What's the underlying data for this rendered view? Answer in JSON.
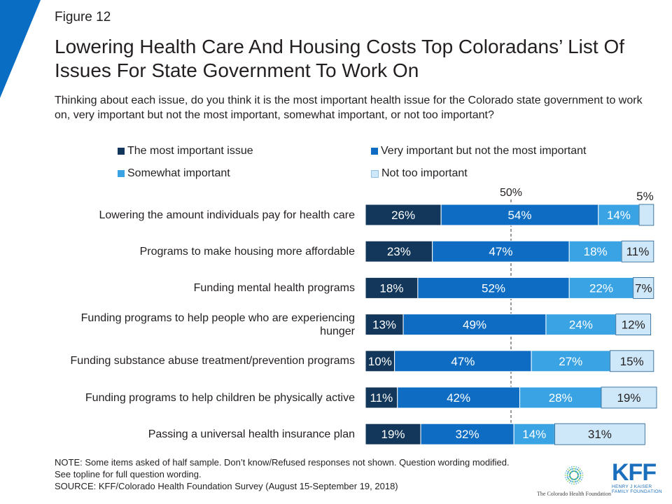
{
  "figure_label": "Figure 12",
  "title": "Lowering Health Care And Housing Costs Top Coloradans’ List Of Issues For State Government To Work On",
  "subtitle": "Thinking about each issue, do you think it is the most important health issue for the Colorado state government to work on, very important but not the most important, somewhat important, or not too important?",
  "colors": {
    "accent": "#0a6dc4",
    "series": [
      "#12375a",
      "#0e6dc2",
      "#3aa3e3",
      "#cfe8f9"
    ]
  },
  "notes": {
    "line1": "NOTE: Some items asked of half sample. Don’t know/Refused responses not shown. Question wording modified. See topline for full question wording.",
    "line2": "SOURCE: KFF/Colorado Health Foundation Survey (August 15-September 19, 2018)"
  },
  "logos": {
    "chf": "The Colorado Health Foundation",
    "chf_icon": "sunburst-icon",
    "kff": "KFF",
    "kff_sub1": "HENRY J KAISER",
    "kff_sub2": "FAMILY FOUNDATION"
  },
  "chart_data": {
    "type": "bar",
    "orientation": "horizontal",
    "stacked": true,
    "xlim": [
      0,
      100
    ],
    "reference_line": {
      "value": 50,
      "label": "50%"
    },
    "legend_position": "top",
    "categories": [
      "Lowering the amount individuals pay for health care",
      "Programs to make housing more affordable",
      "Funding mental health programs",
      "Funding programs to help people who are experiencing hunger",
      "Funding substance abuse treatment/prevention programs",
      "Funding programs to help children be physically active",
      "Passing a universal health insurance plan"
    ],
    "series": [
      {
        "name": "The most important issue",
        "values": [
          26,
          23,
          18,
          13,
          10,
          11,
          19
        ]
      },
      {
        "name": "Very important but not the most important",
        "values": [
          54,
          47,
          52,
          49,
          47,
          42,
          32
        ]
      },
      {
        "name": "Somewhat important",
        "values": [
          14,
          18,
          22,
          24,
          27,
          28,
          14
        ]
      },
      {
        "name": "Not too important",
        "values": [
          5,
          11,
          7,
          12,
          15,
          19,
          31
        ]
      }
    ],
    "outside_labels": [
      {
        "row": 0,
        "series": 3,
        "text": "5%"
      }
    ]
  }
}
